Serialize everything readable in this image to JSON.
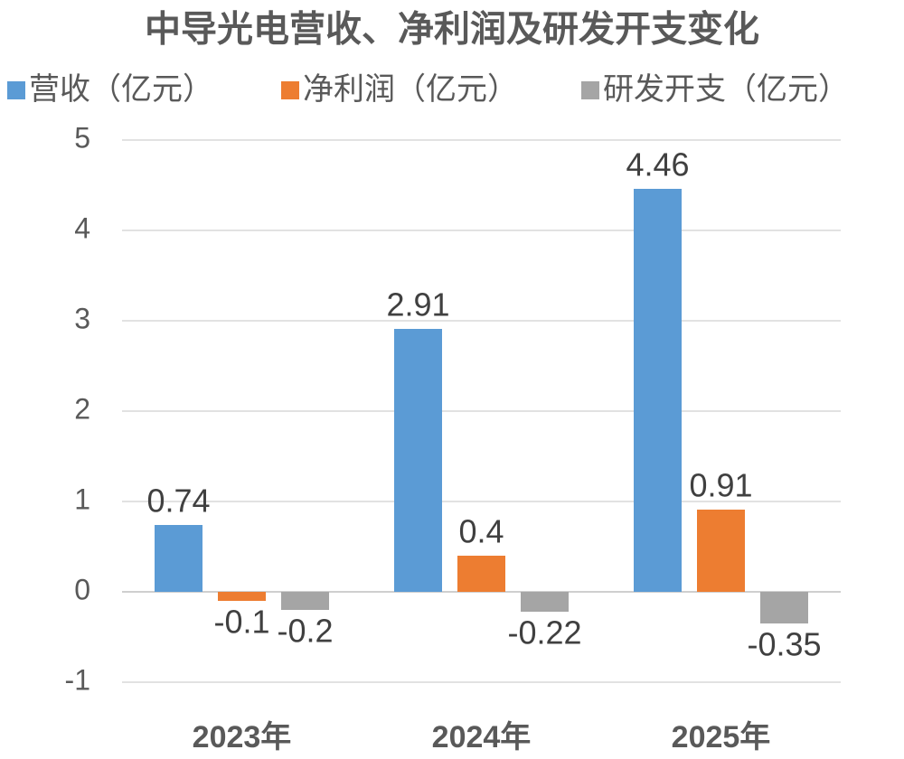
{
  "chart_data": {
    "type": "bar",
    "title": "中导光电营收、净利润及研发开支变化",
    "categories": [
      "2023年",
      "2024年",
      "2025年"
    ],
    "series": [
      {
        "name": "营收（亿元）",
        "color": "#5b9bd5",
        "values": [
          0.74,
          2.91,
          4.46
        ]
      },
      {
        "name": "净利润（亿元）",
        "color": "#ed7d31",
        "values": [
          -0.1,
          0.4,
          0.91
        ]
      },
      {
        "name": "研发开支（亿元）",
        "color": "#a5a5a5",
        "values": [
          -0.2,
          -0.22,
          -0.35
        ]
      }
    ],
    "ylim": [
      -1,
      5
    ],
    "yticks": [
      -1,
      0,
      1,
      2,
      3,
      4,
      5
    ],
    "grid": true,
    "legend": "top"
  }
}
